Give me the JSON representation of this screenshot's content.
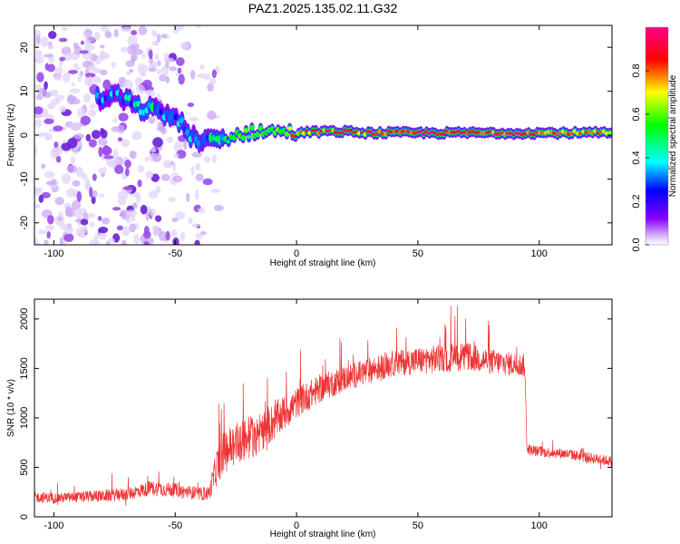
{
  "figure": {
    "title": "PAZ1.2025.135.02.11.G32"
  },
  "colors": {
    "snr_line": "#ee3333",
    "axis": "#000000",
    "track_core": "#ff2222",
    "track_mid": "#22ee55",
    "track_outer": "#2288ff",
    "noise_purple": "#8a2be2",
    "noise_faint": "#d8c8f4",
    "colorbar_stops": [
      "#8800ff",
      "#0000ff",
      "#00ffff",
      "#00ff00",
      "#ffff00",
      "#ff0000",
      "#ff00aa"
    ]
  },
  "chart_data": [
    {
      "type": "heatmap",
      "title": "PAZ1.2025.135.02.11.G32",
      "xlabel": "Height of straight line (km)",
      "ylabel": "Frequency (Hz)",
      "xlim": [
        -108,
        130
      ],
      "ylim": [
        -25,
        25
      ],
      "xticks": [
        -100,
        -50,
        0,
        50,
        100
      ],
      "yticks": [
        -20,
        -10,
        0,
        10,
        20
      ],
      "colorbar": {
        "label": "Normalized spectral amplitude",
        "range": [
          0,
          1
        ],
        "ticks": [
          0.0,
          0.2,
          0.4,
          0.6,
          0.8
        ]
      },
      "track": {
        "x": [
          -80,
          -75,
          -70,
          -65,
          -60,
          -55,
          -50,
          -45,
          -40,
          -35,
          -30,
          -25,
          -20,
          -15,
          -10,
          -5,
          0,
          10,
          20,
          30,
          40,
          50,
          60,
          70,
          80,
          90,
          100,
          110,
          120,
          130
        ],
        "freq": [
          8,
          9,
          8,
          6,
          6,
          5,
          4,
          1,
          -2,
          -1,
          -1,
          0,
          0.5,
          1,
          0.8,
          0.8,
          0.5,
          0.8,
          0.8,
          0.5,
          0.5,
          0.5,
          0.5,
          0.5,
          0.5,
          0.5,
          0.5,
          0.5,
          0.5,
          0.5
        ],
        "amplitude": [
          0.25,
          0.3,
          0.35,
          0.35,
          0.4,
          0.35,
          0.3,
          0.3,
          0.35,
          0.4,
          0.45,
          0.5,
          0.5,
          0.55,
          0.6,
          0.65,
          0.75,
          0.85,
          0.85,
          0.8,
          0.85,
          0.9,
          0.85,
          0.9,
          0.85,
          0.9,
          0.85,
          0.8,
          0.75,
          0.7
        ]
      }
    },
    {
      "type": "line",
      "xlabel": "Height of straight line (km)",
      "ylabel": "SNR (10 * v/v)",
      "xlim": [
        -108,
        130
      ],
      "ylim": [
        0,
        2200
      ],
      "xticks": [
        -100,
        -50,
        0,
        50,
        100
      ],
      "yticks": [
        0,
        500,
        1000,
        1500,
        2000
      ],
      "series": [
        {
          "x": [
            -108,
            -100,
            -90,
            -80,
            -70,
            -60,
            -50,
            -40,
            -36,
            -33,
            -30,
            -25,
            -20,
            -15,
            -10,
            -5,
            0,
            10,
            20,
            30,
            40,
            50,
            60,
            70,
            80,
            90,
            94,
            95,
            100,
            110,
            120,
            130
          ],
          "y": [
            200,
            190,
            200,
            210,
            230,
            290,
            270,
            230,
            240,
            500,
            650,
            750,
            800,
            850,
            950,
            1050,
            1150,
            1300,
            1400,
            1480,
            1550,
            1580,
            1600,
            1620,
            1570,
            1540,
            1530,
            680,
            660,
            640,
            600,
            560
          ],
          "spread": [
            90,
            90,
            90,
            100,
            110,
            130,
            120,
            110,
            120,
            320,
            360,
            380,
            380,
            360,
            320,
            300,
            260,
            240,
            220,
            220,
            220,
            230,
            240,
            240,
            220,
            200,
            200,
            90,
            90,
            90,
            90,
            90
          ]
        }
      ]
    }
  ]
}
